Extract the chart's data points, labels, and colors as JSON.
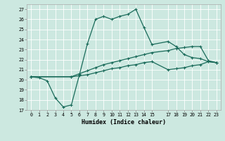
{
  "xlabel": "Humidex (Indice chaleur)",
  "xlim": [
    -0.5,
    23.5
  ],
  "ylim": [
    17,
    27.5
  ],
  "xticks": [
    0,
    1,
    2,
    3,
    4,
    5,
    6,
    7,
    8,
    9,
    10,
    11,
    12,
    13,
    14,
    15,
    17,
    18,
    19,
    20,
    21,
    22,
    23
  ],
  "xtick_labels": [
    "0",
    "1",
    "2",
    "3",
    "4",
    "5",
    "6",
    "7",
    "8",
    "9",
    "10",
    "11",
    "12",
    "13",
    "14",
    "15",
    "17",
    "18",
    "19",
    "20",
    "21",
    "22",
    "23"
  ],
  "yticks": [
    17,
    18,
    19,
    20,
    21,
    22,
    23,
    24,
    25,
    26,
    27
  ],
  "bg_color": "#cce8e0",
  "line_color": "#1a6b5a",
  "line1_x": [
    0,
    1,
    2,
    3,
    4,
    5,
    6,
    7,
    8,
    9,
    10,
    11,
    12,
    13,
    14,
    15,
    17,
    18,
    19,
    20,
    21,
    22,
    23
  ],
  "line1_y": [
    20.3,
    20.2,
    19.9,
    18.2,
    17.3,
    17.5,
    20.5,
    23.6,
    26.0,
    26.3,
    26.0,
    26.3,
    26.5,
    27.0,
    25.2,
    23.5,
    23.8,
    23.3,
    22.5,
    22.2,
    22.1,
    21.8,
    21.7
  ],
  "line2_x": [
    0,
    5,
    6,
    7,
    8,
    9,
    10,
    11,
    12,
    13,
    14,
    15,
    17,
    18,
    19,
    20,
    21,
    22,
    23
  ],
  "line2_y": [
    20.3,
    20.3,
    20.6,
    20.9,
    21.2,
    21.5,
    21.7,
    21.9,
    22.1,
    22.3,
    22.5,
    22.7,
    22.9,
    23.1,
    23.2,
    23.3,
    23.3,
    21.9,
    21.7
  ],
  "line3_x": [
    0,
    5,
    6,
    7,
    8,
    9,
    10,
    11,
    12,
    13,
    14,
    15,
    17,
    18,
    19,
    20,
    21,
    22,
    23
  ],
  "line3_y": [
    20.3,
    20.3,
    20.4,
    20.5,
    20.7,
    20.9,
    21.1,
    21.2,
    21.4,
    21.5,
    21.7,
    21.8,
    21.0,
    21.1,
    21.2,
    21.4,
    21.5,
    21.8,
    21.7
  ]
}
